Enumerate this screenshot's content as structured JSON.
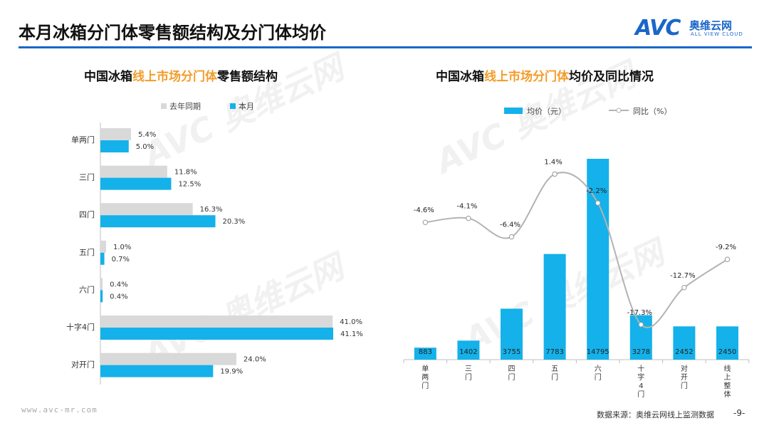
{
  "page": {
    "title": "本月冰箱分门体零售额结构及分门体均价",
    "logo_mark": "AVC",
    "logo_cn": "奥维云网",
    "logo_en": "ALL VIEW CLOUD",
    "watermark_cn": "奥维云网",
    "watermark_en": "ALL VIEW CLOUD",
    "footer_url": "www.avc-mr.com",
    "footer_source": "数据来源：奥维云网线上监测数据",
    "page_number": "-9-"
  },
  "left_chart": {
    "title_prefix": "中国冰箱",
    "title_highlight": "线上市场分门体",
    "title_suffix": "零售额结构"
  },
  "right_chart": {
    "title_prefix": "中国冰箱",
    "title_highlight": "线上市场分门体",
    "title_suffix": "均价及同比情况"
  },
  "chart_data": [
    {
      "type": "bar",
      "orientation": "horizontal",
      "categories": [
        "单两门",
        "三门",
        "四门",
        "五门",
        "六门",
        "十字4门",
        "对开门"
      ],
      "series": [
        {
          "name": "去年同期",
          "values": [
            5.4,
            11.8,
            16.3,
            1.0,
            0.4,
            41.0,
            24.0
          ],
          "labels": [
            "5.4%",
            "11.8%",
            "16.3%",
            "1.0%",
            "0.4%",
            "41.0%",
            "24.0%"
          ],
          "color": "#d9d9d9"
        },
        {
          "name": "本月",
          "values": [
            5.0,
            12.5,
            20.3,
            0.7,
            0.4,
            41.1,
            19.9
          ],
          "labels": [
            "5.0%",
            "12.5%",
            "20.3%",
            "0.7%",
            "0.4%",
            "41.1%",
            "19.9%"
          ],
          "color": "#14b1ea"
        }
      ],
      "xlim": [
        0,
        45
      ],
      "grid": false,
      "legend": "top"
    },
    {
      "type": "bar",
      "categories": [
        "单两门",
        "三门",
        "四门",
        "五门",
        "六门",
        "十字4门",
        "对开门",
        "线上整体"
      ],
      "series": [
        {
          "name": "均价（元）",
          "type": "bar",
          "values": [
            883,
            1402,
            3755,
            7783,
            14795,
            3278,
            2452,
            2450
          ],
          "labels": [
            "883",
            "1402",
            "3755",
            "7783",
            "14795",
            "3278",
            "2452",
            "2450"
          ],
          "color": "#14b1ea"
        },
        {
          "name": "同比（%）",
          "type": "line",
          "values": [
            -4.6,
            -4.1,
            -6.4,
            1.4,
            -2.2,
            -17.3,
            -12.7,
            -9.2
          ],
          "labels": [
            "-4.6%",
            "-4.1%",
            "-6.4%",
            "1.4%",
            "-2.2%",
            "-17.3%",
            "-12.7%",
            "-9.2%"
          ],
          "color": "#b3b3b3"
        }
      ],
      "ylim_bar": [
        0,
        16000
      ],
      "ylim_line": [
        -19,
        4
      ],
      "grid": false,
      "legend": "top"
    }
  ]
}
